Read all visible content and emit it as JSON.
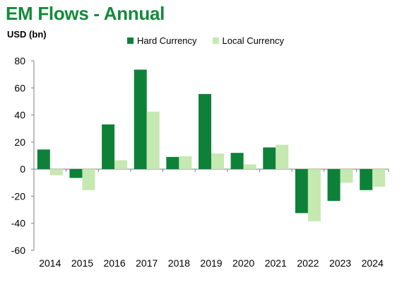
{
  "page": {
    "title": "EM Flows - Annual",
    "unit": "USD (bn)"
  },
  "colors": {
    "hard_currency": "#0e8139",
    "local_currency": "#c6e8b1",
    "title": "#138a3a"
  },
  "chart_data": {
    "type": "bar",
    "title": "EM Flows - Annual",
    "ylabel": "USD (bn)",
    "xlabel": "",
    "categories": [
      "2014",
      "2015",
      "2016",
      "2017",
      "2018",
      "2019",
      "2020",
      "2021",
      "2022",
      "2023",
      "2024"
    ],
    "series": [
      {
        "name": "Hard Currency",
        "values": [
          14.5,
          -6.5,
          33,
          73.5,
          9,
          55.5,
          12,
          16,
          -32.5,
          -23.5,
          -15.5
        ]
      },
      {
        "name": "Local Currency",
        "values": [
          -4.5,
          -15.5,
          6.5,
          42.5,
          9.5,
          11.5,
          3.5,
          18,
          -38.5,
          -10,
          -13
        ]
      }
    ],
    "ylim": [
      -60,
      80
    ],
    "yticks": [
      -60,
      -40,
      -20,
      0,
      20,
      40,
      60,
      80
    ],
    "ytick_labels": [
      "-60",
      "-40",
      "-20",
      "0",
      "20",
      "40",
      "60",
      "80"
    ],
    "grid": false,
    "legend_position": "top"
  }
}
